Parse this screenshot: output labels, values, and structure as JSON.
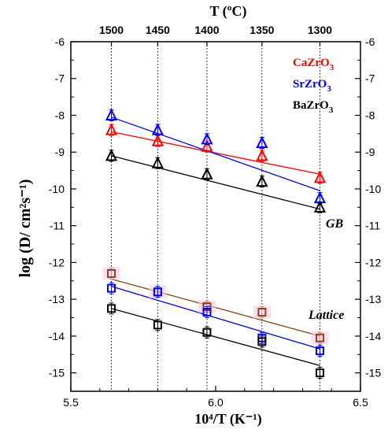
{
  "chart_data": {
    "type": "scatter",
    "xlabel": "10⁴/T (K⁻¹)",
    "ylabel": "log (D/ cm²s⁻¹)",
    "top_axis_title": "T (ºC)",
    "xlim": [
      5.5,
      6.5
    ],
    "ylim": [
      -15.5,
      -6
    ],
    "x_ticks": [
      "5.5",
      "6.0",
      "6.5"
    ],
    "y_ticks": [
      "-15",
      "-14",
      "-13",
      "-12",
      "-11",
      "-10",
      "-9",
      "-8",
      "-7",
      "-6"
    ],
    "top_ticks": [
      {
        "label": "1500",
        "x": 5.64
      },
      {
        "label": "1450",
        "x": 5.8
      },
      {
        "label": "1400",
        "x": 5.97
      },
      {
        "label": "1350",
        "x": 6.16
      },
      {
        "label": "1300",
        "x": 6.36
      }
    ],
    "grid": "vertical dotted lines at top-axis temperatures",
    "legend_position": "top-right",
    "annotations": [
      "GB",
      "Lattice"
    ],
    "series": [
      {
        "name": "CaZrO₃",
        "group": "GB",
        "marker": "triangle",
        "color": "#ff0000",
        "x": [
          5.64,
          5.8,
          5.97,
          6.16,
          6.36
        ],
        "y": [
          -8.4,
          -8.7,
          -8.85,
          -9.1,
          -9.7
        ],
        "fit": [
          [
            5.64,
            -8.45
          ],
          [
            6.36,
            -9.6
          ]
        ]
      },
      {
        "name": "SrZrO₃",
        "group": "GB",
        "marker": "triangle",
        "color": "#0000ff",
        "x": [
          5.64,
          5.8,
          5.97,
          6.16,
          6.36
        ],
        "y": [
          -8.0,
          -8.4,
          -8.65,
          -8.75,
          -10.25
        ],
        "fit": [
          [
            5.64,
            -8.05
          ],
          [
            6.36,
            -10.05
          ]
        ]
      },
      {
        "name": "BaZrO₃",
        "group": "GB",
        "marker": "triangle",
        "color": "#000000",
        "x": [
          5.64,
          5.8,
          5.97,
          6.16,
          6.36
        ],
        "y": [
          -9.1,
          -9.3,
          -9.6,
          -9.8,
          -10.5
        ],
        "fit": [
          [
            5.64,
            -9.1
          ],
          [
            6.36,
            -10.55
          ]
        ]
      },
      {
        "name": "CaZrO₃",
        "group": "Lattice",
        "marker": "square",
        "color": "#8b4513",
        "x": [
          5.64,
          5.8,
          5.97,
          6.16,
          6.36
        ],
        "y": [
          -12.3,
          -12.8,
          -13.2,
          -13.35,
          -14.05
        ],
        "fit": [
          [
            5.64,
            -12.45
          ],
          [
            6.36,
            -14.0
          ]
        ]
      },
      {
        "name": "SrZrO₃",
        "group": "Lattice",
        "marker": "square",
        "color": "#0000ff",
        "x": [
          5.64,
          5.8,
          5.97,
          6.16,
          6.36
        ],
        "y": [
          -12.7,
          -12.8,
          -13.35,
          -14.05,
          -14.4
        ],
        "fit": [
          [
            5.64,
            -12.65
          ],
          [
            6.36,
            -14.35
          ]
        ]
      },
      {
        "name": "BaZrO₃",
        "group": "Lattice",
        "marker": "square",
        "color": "#000000",
        "x": [
          5.64,
          5.8,
          5.97,
          6.16,
          6.36
        ],
        "y": [
          -13.25,
          -13.7,
          -13.9,
          -14.15,
          -15.0
        ],
        "fit": [
          [
            5.64,
            -13.25
          ],
          [
            6.36,
            -14.8
          ]
        ]
      }
    ],
    "legend": [
      {
        "label": "CaZrO",
        "sub": "3",
        "color": "#ff0000"
      },
      {
        "label": "SrZrO",
        "sub": "3",
        "color": "#0000ff"
      },
      {
        "label": "BaZrO",
        "sub": "3",
        "color": "#000000"
      }
    ]
  }
}
